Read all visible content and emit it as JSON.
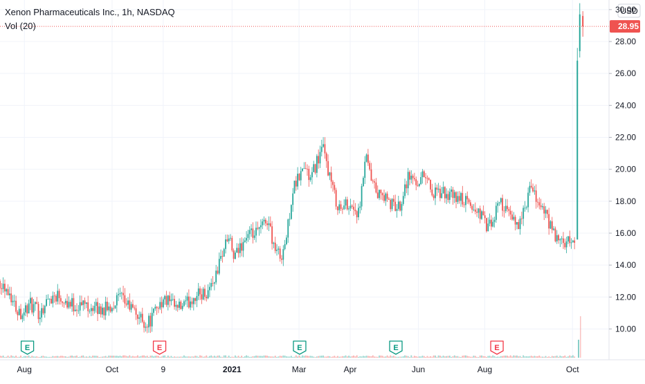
{
  "legend": {
    "title": "Xenon Pharmaceuticals Inc., 1h, NASDAQ",
    "volume": "Vol (20)"
  },
  "currency_button": "USD",
  "colors": {
    "up": "#26a69a",
    "down": "#ef5350",
    "grid": "#f0f3fa",
    "axis_text": "#131722",
    "last_price": "#ef5350",
    "earnings_up": "#089981",
    "earnings_down": "#f23645"
  },
  "chart_data": {
    "type": "candlestick",
    "symbol": "Xenon Pharmaceuticals Inc.",
    "interval": "1h",
    "exchange": "NASDAQ",
    "ylim": [
      8.2,
      30.6
    ],
    "y_ticks": [
      "10.00",
      "12.00",
      "14.00",
      "16.00",
      "18.00",
      "20.00",
      "22.00",
      "24.00",
      "26.00",
      "28.00",
      "30.00"
    ],
    "x_ticks": [
      {
        "label": "Aug",
        "t": 0.04,
        "bold": false
      },
      {
        "label": "Oct",
        "t": 0.184,
        "bold": false
      },
      {
        "label": "9",
        "t": 0.268,
        "bold": false
      },
      {
        "label": "2021",
        "t": 0.381,
        "bold": true
      },
      {
        "label": "Mar",
        "t": 0.491,
        "bold": false
      },
      {
        "label": "Apr",
        "t": 0.575,
        "bold": false
      },
      {
        "label": "Jun",
        "t": 0.687,
        "bold": false
      },
      {
        "label": "Aug",
        "t": 0.796,
        "bold": false
      },
      {
        "label": "Oct",
        "t": 0.94,
        "bold": false
      }
    ],
    "last_price": {
      "value": 28.95,
      "label": "28.95"
    },
    "price_path": [
      [
        0.0,
        13.0
      ],
      [
        0.015,
        12.4
      ],
      [
        0.025,
        11.4
      ],
      [
        0.035,
        11.0
      ],
      [
        0.05,
        11.5
      ],
      [
        0.065,
        11.0
      ],
      [
        0.08,
        11.9
      ],
      [
        0.095,
        12.2
      ],
      [
        0.11,
        11.7
      ],
      [
        0.125,
        11.4
      ],
      [
        0.14,
        11.6
      ],
      [
        0.16,
        11.2
      ],
      [
        0.18,
        11.3
      ],
      [
        0.195,
        12.0
      ],
      [
        0.21,
        11.5
      ],
      [
        0.225,
        10.9
      ],
      [
        0.24,
        10.3
      ],
      [
        0.25,
        10.7
      ],
      [
        0.26,
        11.6
      ],
      [
        0.275,
        11.8
      ],
      [
        0.29,
        11.2
      ],
      [
        0.305,
        11.5
      ],
      [
        0.32,
        12.1
      ],
      [
        0.34,
        12.3
      ],
      [
        0.355,
        13.4
      ],
      [
        0.365,
        14.8
      ],
      [
        0.375,
        15.8
      ],
      [
        0.385,
        14.3
      ],
      [
        0.395,
        15.2
      ],
      [
        0.405,
        15.8
      ],
      [
        0.42,
        15.9
      ],
      [
        0.43,
        16.4
      ],
      [
        0.44,
        16.9
      ],
      [
        0.45,
        15.2
      ],
      [
        0.46,
        14.5
      ],
      [
        0.47,
        15.6
      ],
      [
        0.48,
        18.6
      ],
      [
        0.49,
        19.4
      ],
      [
        0.5,
        20.2
      ],
      [
        0.51,
        19.3
      ],
      [
        0.52,
        20.5
      ],
      [
        0.53,
        21.3
      ],
      [
        0.54,
        19.8
      ],
      [
        0.55,
        18.2
      ],
      [
        0.56,
        17.4
      ],
      [
        0.57,
        17.9
      ],
      [
        0.58,
        17.6
      ],
      [
        0.59,
        17.1
      ],
      [
        0.6,
        20.8
      ],
      [
        0.61,
        19.2
      ],
      [
        0.62,
        18.4
      ],
      [
        0.63,
        18.3
      ],
      [
        0.64,
        17.8
      ],
      [
        0.655,
        17.6
      ],
      [
        0.67,
        19.6
      ],
      [
        0.685,
        19.2
      ],
      [
        0.7,
        19.8
      ],
      [
        0.71,
        18.4
      ],
      [
        0.725,
        18.5
      ],
      [
        0.74,
        18.3
      ],
      [
        0.76,
        18.1
      ],
      [
        0.775,
        17.6
      ],
      [
        0.79,
        17.2
      ],
      [
        0.8,
        16.3
      ],
      [
        0.81,
        16.6
      ],
      [
        0.82,
        18.2
      ],
      [
        0.83,
        17.4
      ],
      [
        0.84,
        16.8
      ],
      [
        0.85,
        16.6
      ],
      [
        0.86,
        17.2
      ],
      [
        0.87,
        18.7
      ],
      [
        0.88,
        18.2
      ],
      [
        0.89,
        17.6
      ],
      [
        0.9,
        16.8
      ],
      [
        0.91,
        15.8
      ],
      [
        0.92,
        15.4
      ],
      [
        0.93,
        15.3
      ],
      [
        0.94,
        15.5
      ],
      [
        0.945,
        15.7
      ],
      [
        0.95,
        27.2
      ],
      [
        0.955,
        29.4
      ],
      [
        0.96,
        28.95
      ]
    ],
    "volume_spike_t": 0.95,
    "earnings_markers": [
      {
        "label": "E",
        "t": 0.045,
        "type": "up"
      },
      {
        "label": "E",
        "t": 0.262,
        "type": "down"
      },
      {
        "label": "E",
        "t": 0.492,
        "type": "up"
      },
      {
        "label": "E",
        "t": 0.65,
        "type": "up"
      },
      {
        "label": "E",
        "t": 0.816,
        "type": "down"
      }
    ]
  }
}
